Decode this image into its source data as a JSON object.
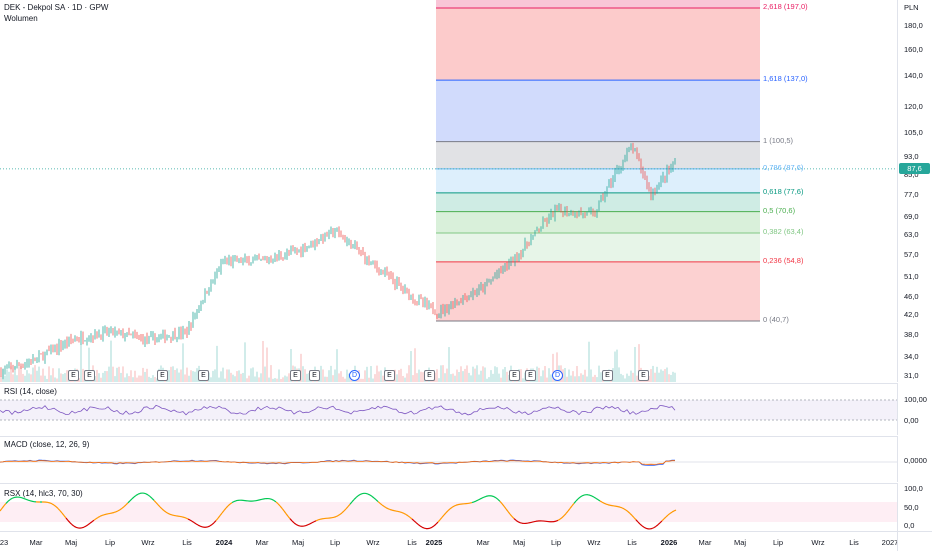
{
  "symbol": {
    "title": "DEK - Dekpol SA · 1D · GPW",
    "volume_label": "Wolumen"
  },
  "currency": "PLN",
  "colors": {
    "up": "#26a69a",
    "down": "#ef5350",
    "price_line": "#26a69a",
    "rsi": "#7e57c2",
    "macd": "#2962ff",
    "signal": "#ff6d00"
  },
  "price_axis": {
    "ticks": [
      "180,0",
      "160,0",
      "140,0",
      "120,0",
      "105,0",
      "93,0",
      "85,0",
      "77,0",
      "69,0",
      "63,0",
      "57,0",
      "51,0",
      "46,0",
      "42,0",
      "38,0",
      "34,0",
      "31,0"
    ],
    "current_price": "87,6"
  },
  "fibonacci": {
    "levels": [
      {
        "label": "2,618 (197,0)",
        "color": "#e91e63"
      },
      {
        "label": "1,618 (137,0)",
        "color": "#2962ff"
      },
      {
        "label": "1 (100,5)",
        "color": "#787b86"
      },
      {
        "label": "0,786 (87,6)",
        "color": "#64b5f6"
      },
      {
        "label": "0,618 (77,6)",
        "color": "#089981"
      },
      {
        "label": "0,5 (70,6)",
        "color": "#4caf50"
      },
      {
        "label": "0,382 (63,4)",
        "color": "#81c784"
      },
      {
        "label": "0,236 (54,8)",
        "color": "#f23645"
      },
      {
        "label": "0 (40,7)",
        "color": "#787b86"
      }
    ]
  },
  "events": [
    "E",
    "E",
    "E",
    "E",
    "E",
    "E",
    "D",
    "E",
    "E",
    "E",
    "E",
    "D",
    "E",
    "E"
  ],
  "indicators": {
    "rsi": {
      "label": "RSI (14, close)",
      "ticks": [
        "100,00",
        "0,00"
      ]
    },
    "macd": {
      "label": "MACD (close, 12, 26, 9)",
      "ticks": [
        "0,0000"
      ]
    },
    "rsx": {
      "label": "RSX (14, hlc3, 70, 30)",
      "ticks": [
        "100,0",
        "50,0",
        "0,0"
      ]
    }
  },
  "time_axis": [
    {
      "label": "23",
      "bold": false
    },
    {
      "label": "Mar",
      "bold": false
    },
    {
      "label": "Maj",
      "bold": false
    },
    {
      "label": "Lip",
      "bold": false
    },
    {
      "label": "Wrz",
      "bold": false
    },
    {
      "label": "Lis",
      "bold": false
    },
    {
      "label": "2024",
      "bold": true
    },
    {
      "label": "Mar",
      "bold": false
    },
    {
      "label": "Maj",
      "bold": false
    },
    {
      "label": "Lip",
      "bold": false
    },
    {
      "label": "Wrz",
      "bold": false
    },
    {
      "label": "Lis",
      "bold": false
    },
    {
      "label": "2025",
      "bold": true
    },
    {
      "label": "Mar",
      "bold": false
    },
    {
      "label": "Maj",
      "bold": false
    },
    {
      "label": "Lip",
      "bold": false
    },
    {
      "label": "Wrz",
      "bold": false
    },
    {
      "label": "Lis",
      "bold": false
    },
    {
      "label": "2026",
      "bold": true
    },
    {
      "label": "Mar",
      "bold": false
    },
    {
      "label": "Maj",
      "bold": false
    },
    {
      "label": "Lip",
      "bold": false
    },
    {
      "label": "Wrz",
      "bold": false
    },
    {
      "label": "Lis",
      "bold": false
    },
    {
      "label": "2027",
      "bold": false
    }
  ],
  "chart_data": {
    "type": "line",
    "title": "DEK - Dekpol SA · 1D · GPW",
    "y_scale": "log",
    "ylim": [
      30,
      200
    ],
    "x": [
      "2023-01",
      "2023-03",
      "2023-05",
      "2023-07",
      "2023-09",
      "2023-11",
      "2024-01",
      "2024-03",
      "2024-05",
      "2024-07",
      "2024-09",
      "2024-11",
      "2025-01",
      "2025-03",
      "2025-05",
      "2025-07",
      "2025-09",
      "2025-11",
      "2025-12",
      "2026-01"
    ],
    "series": [
      {
        "values": [
          31.5,
          33.5,
          37,
          38.5,
          37,
          38.5,
          55,
          55,
          58,
          64,
          54,
          46,
          42.5,
          48,
          57,
          71,
          69.5,
          98,
          77,
          91
        ]
      }
    ]
  }
}
